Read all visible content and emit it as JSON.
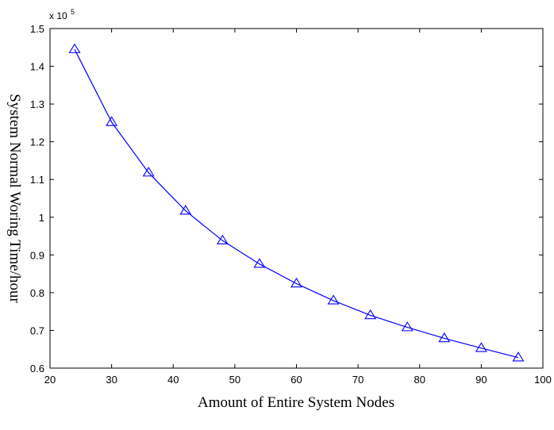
{
  "chart_data": {
    "type": "line",
    "title": "",
    "xlabel": "Amount of Entire System Nodes",
    "ylabel": "System Normal Woring Time/hour",
    "y_multiplier_base": "x 10",
    "y_multiplier_exponent": "5",
    "xlim": [
      20,
      100
    ],
    "ylim": [
      0.6,
      1.5
    ],
    "x_ticks": [
      20,
      30,
      40,
      50,
      60,
      70,
      80,
      90,
      100
    ],
    "y_ticks": [
      0.6,
      0.7,
      0.8,
      0.9,
      1.0,
      1.1,
      1.2,
      1.3,
      1.4,
      1.5
    ],
    "x_tick_labels": [
      "20",
      "30",
      "40",
      "50",
      "60",
      "70",
      "80",
      "90",
      "100"
    ],
    "y_tick_labels": [
      "0.6",
      "0.7",
      "0.8",
      "0.9",
      "1",
      "1.1",
      "1.2",
      "1.3",
      "1.4",
      "1.5"
    ],
    "grid": false,
    "series": [
      {
        "marker": "triangle",
        "color": "#0000ff",
        "x": [
          24,
          30,
          36,
          42,
          48,
          54,
          60,
          66,
          72,
          78,
          84,
          90,
          96
        ],
        "y": [
          1.445,
          1.252,
          1.118,
          1.017,
          0.938,
          0.876,
          0.824,
          0.779,
          0.74,
          0.708,
          0.679,
          0.653,
          0.628
        ]
      }
    ]
  }
}
